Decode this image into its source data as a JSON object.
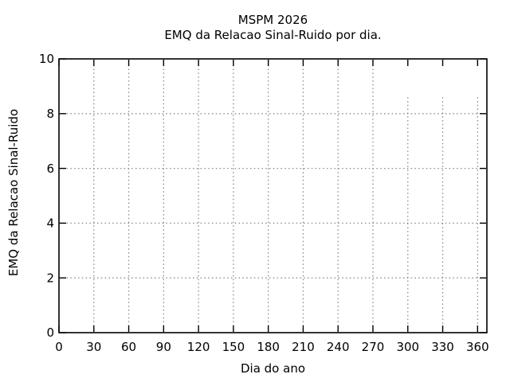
{
  "figure": {
    "title": "MSPM 2026",
    "subtitle": "EMQ da Relacao Sinal-Ruido por dia.",
    "xlabel": "Dia do ano",
    "ylabel": "EMQ da Relacao Sinal-Ruido"
  },
  "chart_data": {
    "type": "line",
    "title": "MSPM 2026",
    "subtitle": "EMQ da Relacao Sinal-Ruido por dia.",
    "xlabel": "Dia do ano",
    "ylabel": "EMQ da Relacao Sinal-Ruido",
    "xlim": [
      0,
      368
    ],
    "ylim": [
      0,
      10
    ],
    "xticks": [
      0,
      30,
      60,
      90,
      120,
      150,
      180,
      210,
      240,
      270,
      300,
      330,
      360
    ],
    "yticks": [
      0,
      2,
      4,
      6,
      8,
      10
    ],
    "grid": {
      "horizontal": true,
      "vertical": false,
      "style": "dotted",
      "color": "#8a8a8a"
    },
    "series": [
      {
        "name": "dotted-vertical-impulses",
        "style": "dotted-impulse",
        "color": "#8a8a8a",
        "x": [
          30,
          60,
          90,
          120,
          150,
          180,
          210,
          240,
          270,
          300,
          330,
          360
        ],
        "y": [
          10,
          10,
          10,
          10,
          10,
          10,
          10,
          10,
          10,
          8.6,
          8.6,
          8.6
        ]
      }
    ],
    "axis_color": "#000000",
    "background": "#ffffff",
    "legend": "none"
  }
}
